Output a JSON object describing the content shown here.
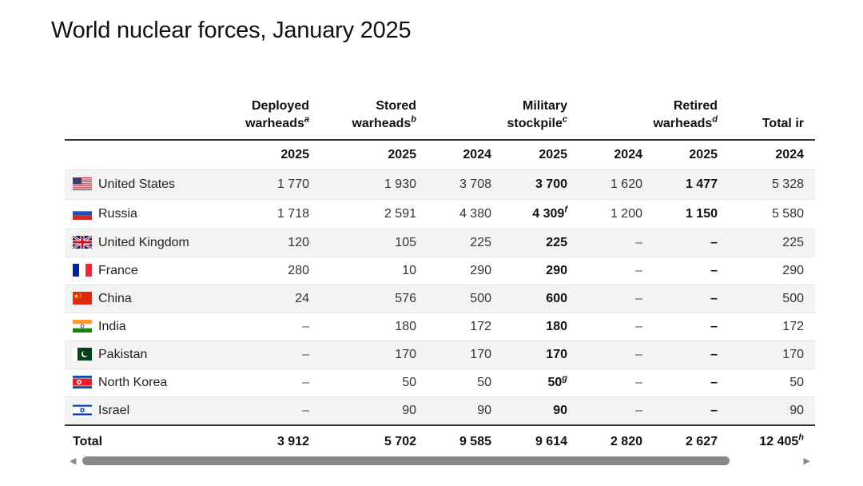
{
  "title": "World nuclear forces, January 2025",
  "headers": {
    "deployed": {
      "line1": "Deployed",
      "line2": "warheads",
      "note": "a"
    },
    "stored": {
      "line1": "Stored",
      "line2": "warheads",
      "note": "b"
    },
    "military": {
      "line1": "Military",
      "line2": "stockpile",
      "note": "c"
    },
    "retired": {
      "line1": "Retired",
      "line2": "warheads",
      "note": "d"
    },
    "total": {
      "line1": "",
      "line2": "Total ir",
      "note": ""
    }
  },
  "years": [
    "2025",
    "2025",
    "2024",
    "2025",
    "2024",
    "2025",
    "2024"
  ],
  "rows": [
    {
      "country": "United States",
      "flag": "us-flag",
      "deployed": "1 770",
      "stored": "1 930",
      "mil2024": "3 708",
      "mil2025": "3 700",
      "mil2025_note": "",
      "ret2024": "1 620",
      "ret2025": "1 477",
      "tot2024": "5 328"
    },
    {
      "country": "Russia",
      "flag": "russia-flag",
      "deployed": "1 718",
      "stored": "2 591",
      "mil2024": "4 380",
      "mil2025": "4 309",
      "mil2025_note": "f",
      "ret2024": "1 200",
      "ret2025": "1 150",
      "tot2024": "5 580"
    },
    {
      "country": "United Kingdom",
      "flag": "uk-flag",
      "deployed": "120",
      "stored": "105",
      "mil2024": "225",
      "mil2025": "225",
      "mil2025_note": "",
      "ret2024": "–",
      "ret2025": "–",
      "tot2024": "225"
    },
    {
      "country": "France",
      "flag": "france-flag",
      "deployed": "280",
      "stored": "10",
      "mil2024": "290",
      "mil2025": "290",
      "mil2025_note": "",
      "ret2024": "–",
      "ret2025": "–",
      "tot2024": "290"
    },
    {
      "country": "China",
      "flag": "china-flag",
      "deployed": "24",
      "stored": "576",
      "mil2024": "500",
      "mil2025": "600",
      "mil2025_note": "",
      "ret2024": "–",
      "ret2025": "–",
      "tot2024": "500"
    },
    {
      "country": "India",
      "flag": "india-flag",
      "deployed": "–",
      "stored": "180",
      "mil2024": "172",
      "mil2025": "180",
      "mil2025_note": "",
      "ret2024": "–",
      "ret2025": "–",
      "tot2024": "172"
    },
    {
      "country": "Pakistan",
      "flag": "pakistan-flag",
      "deployed": "–",
      "stored": "170",
      "mil2024": "170",
      "mil2025": "170",
      "mil2025_note": "",
      "ret2024": "–",
      "ret2025": "–",
      "tot2024": "170"
    },
    {
      "country": "North Korea",
      "flag": "north-korea-flag",
      "deployed": "–",
      "stored": "50",
      "mil2024": "50",
      "mil2025": "50",
      "mil2025_note": "g",
      "ret2024": "–",
      "ret2025": "–",
      "tot2024": "50"
    },
    {
      "country": "Israel",
      "flag": "israel-flag",
      "deployed": "–",
      "stored": "90",
      "mil2024": "90",
      "mil2025": "90",
      "mil2025_note": "",
      "ret2024": "–",
      "ret2025": "–",
      "tot2024": "90"
    }
  ],
  "total": {
    "label": "Total",
    "deployed": "3 912",
    "stored": "5 702",
    "mil2024": "9 585",
    "mil2025": "9 614",
    "ret2024": "2 820",
    "ret2025": "2 627",
    "tot2024": "12 405",
    "tot_note": "h"
  },
  "scrollbar": {
    "left_arrow": "◀",
    "right_arrow": "▶"
  }
}
